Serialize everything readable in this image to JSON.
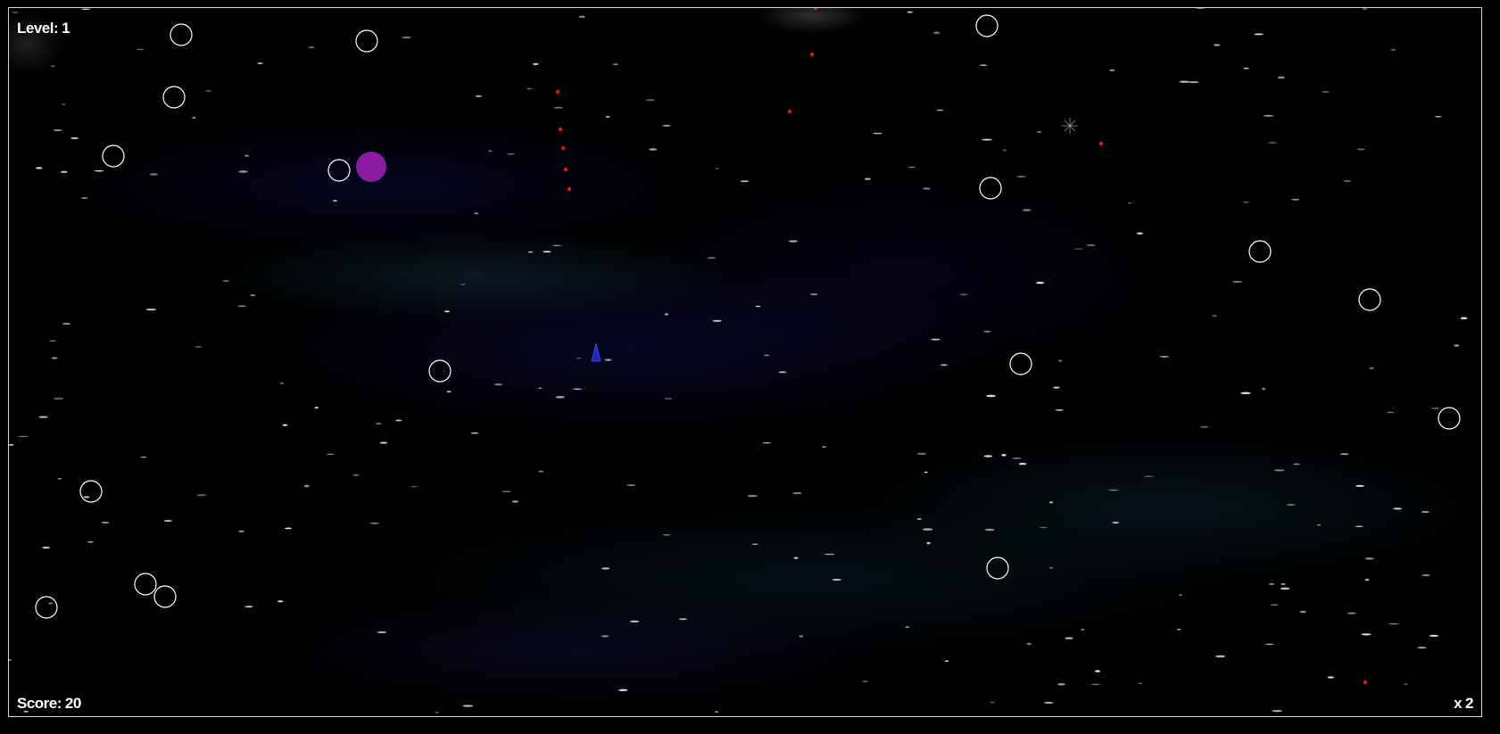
{
  "hud": {
    "level_label": "Level:",
    "level_value": "1",
    "score_label": "Score:",
    "score_value": "20",
    "multiplier_label": "x",
    "multiplier_value": "2"
  },
  "colors": {
    "asteroid_outline": "#ffffff",
    "ship": "#1a28c8",
    "bullet": "#e01818",
    "powerup": "#8a1aa0",
    "frame_border": "#d8d8d8"
  },
  "icons": {
    "ship": "triangle-ship-icon",
    "asteroid": "circle-outline",
    "powerup": "filled-circle",
    "bullet": "red-dot"
  }
}
